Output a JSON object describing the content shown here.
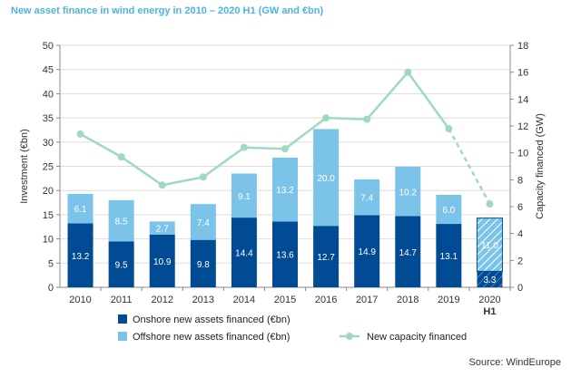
{
  "colors": {
    "title": "#4ab3e3",
    "onshore": "#004b93",
    "offshore": "#7cc3ea",
    "capacity": "#9fd9c4",
    "grid": "#dddddd"
  },
  "chart_data": {
    "type": "bar",
    "title": "New asset finance in wind energy in 2010 – 2020 H1 (GW and €bn)",
    "source": "Source: WindEurope",
    "categories": [
      "2010",
      "2011",
      "2012",
      "2013",
      "2014",
      "2015",
      "2016",
      "2017",
      "2018",
      "2019",
      "2020"
    ],
    "category_sublabels": [
      "",
      "",
      "",
      "",
      "",
      "",
      "",
      "",
      "",
      "",
      "H1"
    ],
    "ylabel": "Investment (€bn)",
    "ylim": [
      0,
      50
    ],
    "yticks": [
      0,
      5,
      10,
      15,
      20,
      25,
      30,
      35,
      40,
      45,
      50
    ],
    "y2label": "Capacity financed (GW)",
    "y2lim": [
      0,
      18
    ],
    "y2ticks": [
      0,
      2,
      4,
      6,
      8,
      10,
      12,
      14,
      16,
      18
    ],
    "grid": true,
    "legend_position": "bottom",
    "series": [
      {
        "name": "Onshore new assets financed (€bn)",
        "kind": "bar",
        "values": [
          13.2,
          9.5,
          10.9,
          9.8,
          14.4,
          13.6,
          12.7,
          14.9,
          14.7,
          13.1,
          3.3
        ],
        "labels": [
          "13.2",
          "9.5",
          "10.9",
          "9.8",
          "14.4",
          "13.6",
          "12.7",
          "14.9",
          "14.7",
          "13.1",
          "3.3"
        ]
      },
      {
        "name": "Offshore new assets financed (€bn)",
        "kind": "bar",
        "values": [
          6.1,
          8.5,
          2.7,
          7.4,
          9.1,
          13.2,
          20.0,
          7.4,
          10.2,
          6.0,
          11.0
        ],
        "labels": [
          "6.1",
          "8.5",
          "2.7",
          "7.4",
          "9.1",
          "13.2",
          "20.0",
          "7.4",
          "10.2",
          "6.0",
          "11.0"
        ]
      },
      {
        "name": "New capacity financed",
        "kind": "line",
        "axis": "right",
        "values": [
          11.4,
          9.7,
          7.6,
          8.2,
          10.4,
          10.3,
          12.6,
          12.5,
          16.0,
          11.8,
          6.2
        ],
        "dashed_last_segment": true
      }
    ],
    "hatched_category": "2020"
  }
}
